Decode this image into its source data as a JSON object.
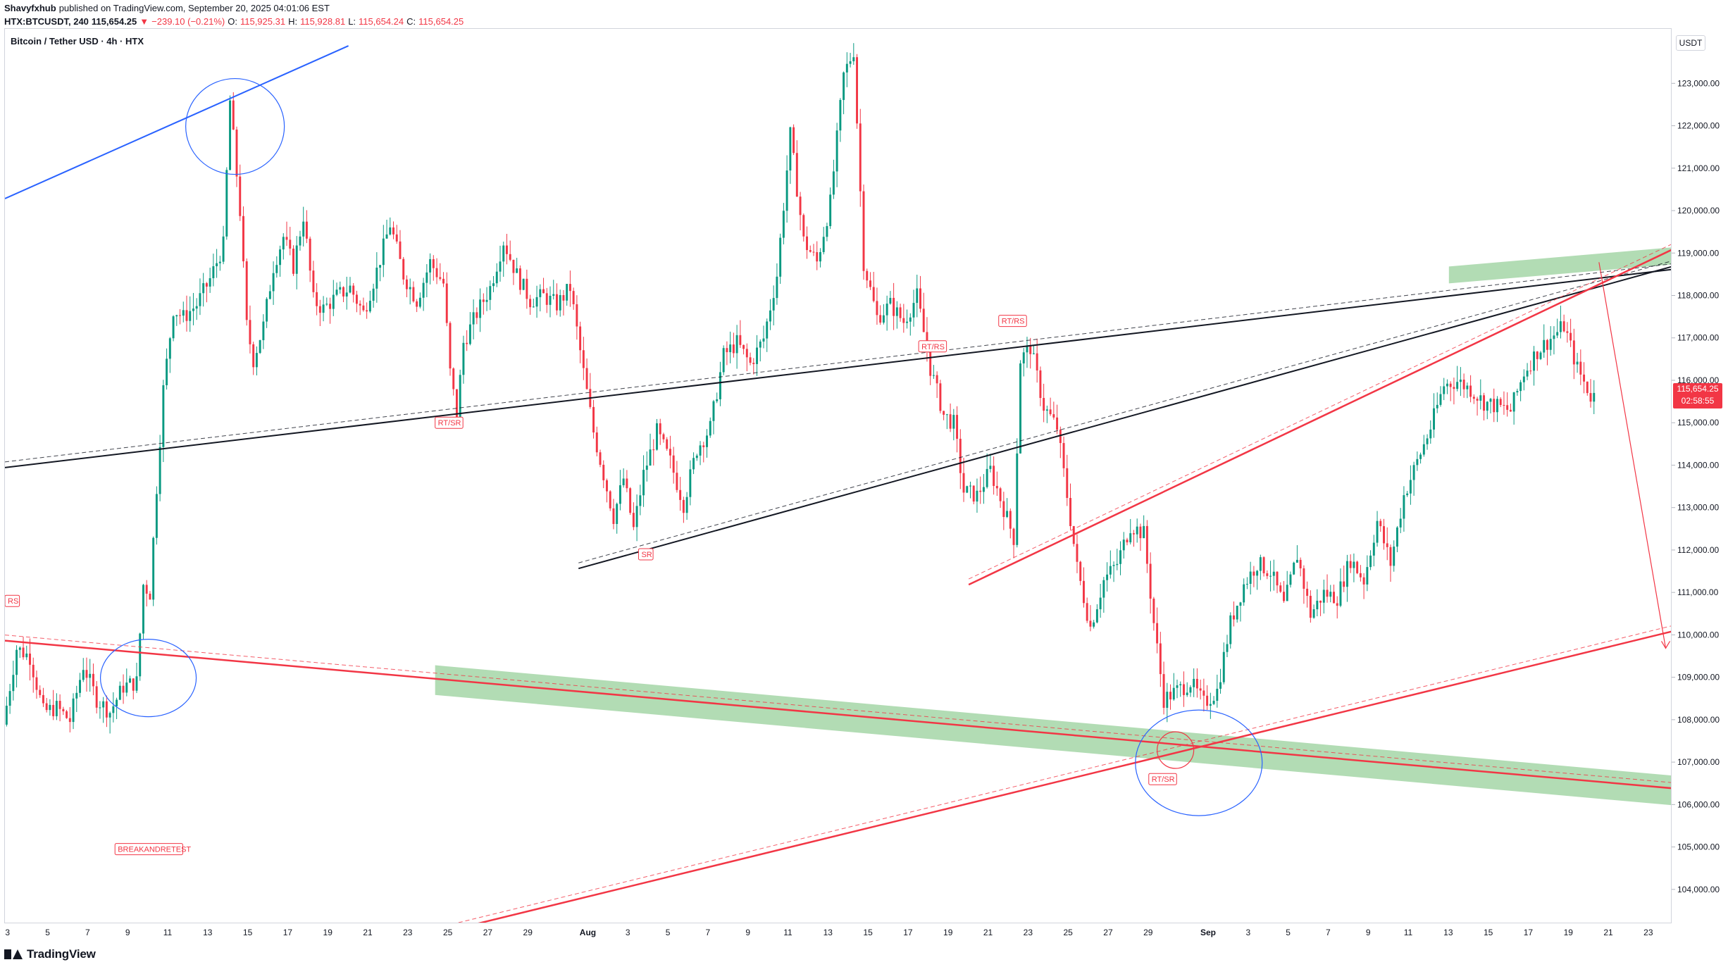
{
  "header": {
    "publisher": "Shavyfxhub",
    "published_text": "published on TradingView.com, September 20, 2025 04:01:06 EST",
    "symbol": "HTX:BTCUSDT, 240",
    "last": "115,654.25",
    "change": "−239.10 (−0.21%)",
    "open_label": "O:",
    "open": "115,925.31",
    "high_label": "H:",
    "high": "115,928.81",
    "low_label": "L:",
    "low": "115,654.24",
    "close_label": "C:",
    "close": "115,654.25"
  },
  "chart_title": "Bitcoin / Tether USD · 4h · HTX",
  "unit": "USDT",
  "price_tag": {
    "price": "115,654.25",
    "countdown": "02:58:55"
  },
  "footer": {
    "brand": "TradingView"
  },
  "colors": {
    "up": "#089981",
    "down": "#f23645",
    "zone": "#a5d6a7",
    "blue": "#2962ff",
    "black": "#131722"
  },
  "chart_data": {
    "type": "candlestick",
    "symbol": "BTCUSDT",
    "ylim": [
      103200,
      124300
    ],
    "y_ticks": [
      104000,
      105000,
      106000,
      107000,
      108000,
      109000,
      110000,
      111000,
      112000,
      113000,
      114000,
      115000,
      116000,
      117000,
      118000,
      119000,
      120000,
      121000,
      122000,
      123000
    ],
    "y_tick_labels": [
      "104,000.00",
      "105,000.00",
      "106,000.00",
      "107,000.00",
      "108,000.00",
      "109,000.00",
      "110,000.00",
      "111,000.00",
      "112,000.00",
      "113,000.00",
      "114,000.00",
      "115,000.00",
      "116,000.00",
      "117,000.00",
      "118,000.00",
      "119,000.00",
      "120,000.00",
      "121,000.00",
      "122,000.00",
      "123,000.00"
    ],
    "xlim": [
      "2025-07-02T20:00",
      "2025-09-24T04:00"
    ],
    "x_ticks": [
      {
        "date": "2025-07-03",
        "label": "3"
      },
      {
        "date": "2025-07-05",
        "label": "5"
      },
      {
        "date": "2025-07-07",
        "label": "7"
      },
      {
        "date": "2025-07-09",
        "label": "9"
      },
      {
        "date": "2025-07-11",
        "label": "11"
      },
      {
        "date": "2025-07-13",
        "label": "13"
      },
      {
        "date": "2025-07-15",
        "label": "15"
      },
      {
        "date": "2025-07-17",
        "label": "17"
      },
      {
        "date": "2025-07-19",
        "label": "19"
      },
      {
        "date": "2025-07-21",
        "label": "21"
      },
      {
        "date": "2025-07-23",
        "label": "23"
      },
      {
        "date": "2025-07-25",
        "label": "25"
      },
      {
        "date": "2025-07-27",
        "label": "27"
      },
      {
        "date": "2025-07-29",
        "label": "29"
      },
      {
        "date": "2025-08-01",
        "label": "Aug"
      },
      {
        "date": "2025-08-03",
        "label": "3"
      },
      {
        "date": "2025-08-05",
        "label": "5"
      },
      {
        "date": "2025-08-07",
        "label": "7"
      },
      {
        "date": "2025-08-09",
        "label": "9"
      },
      {
        "date": "2025-08-11",
        "label": "11"
      },
      {
        "date": "2025-08-13",
        "label": "13"
      },
      {
        "date": "2025-08-15",
        "label": "15"
      },
      {
        "date": "2025-08-17",
        "label": "17"
      },
      {
        "date": "2025-08-19",
        "label": "19"
      },
      {
        "date": "2025-08-21",
        "label": "21"
      },
      {
        "date": "2025-08-23",
        "label": "23"
      },
      {
        "date": "2025-08-25",
        "label": "25"
      },
      {
        "date": "2025-08-27",
        "label": "27"
      },
      {
        "date": "2025-08-29",
        "label": "29"
      },
      {
        "date": "2025-09-01",
        "label": "Sep"
      },
      {
        "date": "2025-09-03",
        "label": "3"
      },
      {
        "date": "2025-09-05",
        "label": "5"
      },
      {
        "date": "2025-09-07",
        "label": "7"
      },
      {
        "date": "2025-09-09",
        "label": "9"
      },
      {
        "date": "2025-09-11",
        "label": "11"
      },
      {
        "date": "2025-09-13",
        "label": "13"
      },
      {
        "date": "2025-09-15",
        "label": "15"
      },
      {
        "date": "2025-09-17",
        "label": "17"
      },
      {
        "date": "2025-09-19",
        "label": "19"
      },
      {
        "date": "2025-09-21",
        "label": "21"
      },
      {
        "date": "2025-09-23",
        "label": "23"
      }
    ],
    "price_path": [
      [
        "2025-07-02T20:00",
        107900
      ],
      [
        "2025-07-03T12:00",
        109700
      ],
      [
        "2025-07-04T04:00",
        109500
      ],
      [
        "2025-07-04T20:00",
        108200
      ],
      [
        "2025-07-05T12:00",
        108300
      ],
      [
        "2025-07-06T04:00",
        108000
      ],
      [
        "2025-07-06T20:00",
        109300
      ],
      [
        "2025-07-07T12:00",
        108500
      ],
      [
        "2025-07-08T04:00",
        108200
      ],
      [
        "2025-07-08T20:00",
        108800
      ],
      [
        "2025-07-09T12:00",
        108900
      ],
      [
        "2025-07-09T20:00",
        111200
      ],
      [
        "2025-07-10T04:00",
        111000
      ],
      [
        "2025-07-10T12:00",
        113500
      ],
      [
        "2025-07-10T20:00",
        115800
      ],
      [
        "2025-07-11T08:00",
        117700
      ],
      [
        "2025-07-11T20:00",
        117500
      ],
      [
        "2025-07-12T12:00",
        117800
      ],
      [
        "2025-07-13T04:00",
        118400
      ],
      [
        "2025-07-13T20:00",
        119200
      ],
      [
        "2025-07-14T04:00",
        122600
      ],
      [
        "2025-07-14T16:00",
        120000
      ],
      [
        "2025-07-15T00:00",
        117300
      ],
      [
        "2025-07-15T08:00",
        116500
      ],
      [
        "2025-07-15T20:00",
        117300
      ],
      [
        "2025-07-16T08:00",
        118700
      ],
      [
        "2025-07-16T20:00",
        119400
      ],
      [
        "2025-07-17T08:00",
        118700
      ],
      [
        "2025-07-17T20:00",
        119900
      ],
      [
        "2025-07-18T08:00",
        117900
      ],
      [
        "2025-07-18T20:00",
        117700
      ],
      [
        "2025-07-19T12:00",
        118000
      ],
      [
        "2025-07-20T04:00",
        118200
      ],
      [
        "2025-07-20T20:00",
        117600
      ],
      [
        "2025-07-21T12:00",
        118600
      ],
      [
        "2025-07-22T04:00",
        119700
      ],
      [
        "2025-07-22T20:00",
        118500
      ],
      [
        "2025-07-23T12:00",
        117900
      ],
      [
        "2025-07-24T04:00",
        118800
      ],
      [
        "2025-07-24T20:00",
        118300
      ],
      [
        "2025-07-25T04:00",
        116200
      ],
      [
        "2025-07-25T12:00",
        115200
      ],
      [
        "2025-07-25T20:00",
        116900
      ],
      [
        "2025-07-26T12:00",
        117600
      ],
      [
        "2025-07-27T04:00",
        118200
      ],
      [
        "2025-07-27T20:00",
        119300
      ],
      [
        "2025-07-28T12:00",
        118500
      ],
      [
        "2025-07-29T04:00",
        117900
      ],
      [
        "2025-07-29T20:00",
        118000
      ],
      [
        "2025-07-30T12:00",
        117800
      ],
      [
        "2025-07-31T04:00",
        118200
      ],
      [
        "2025-07-31T20:00",
        116200
      ],
      [
        "2025-08-01T08:00",
        114800
      ],
      [
        "2025-08-01T20:00",
        113800
      ],
      [
        "2025-08-02T08:00",
        112800
      ],
      [
        "2025-08-02T20:00",
        113700
      ],
      [
        "2025-08-03T08:00",
        112500
      ],
      [
        "2025-08-03T20:00",
        113800
      ],
      [
        "2025-08-04T12:00",
        114800
      ],
      [
        "2025-08-05T04:00",
        114100
      ],
      [
        "2025-08-05T20:00",
        113100
      ],
      [
        "2025-08-06T12:00",
        114400
      ],
      [
        "2025-08-07T04:00",
        114900
      ],
      [
        "2025-08-07T20:00",
        116600
      ],
      [
        "2025-08-08T12:00",
        116900
      ],
      [
        "2025-08-09T04:00",
        116400
      ],
      [
        "2025-08-09T20:00",
        117000
      ],
      [
        "2025-08-10T12:00",
        118500
      ],
      [
        "2025-08-11T04:00",
        121800
      ],
      [
        "2025-08-11T20:00",
        119300
      ],
      [
        "2025-08-12T12:00",
        118800
      ],
      [
        "2025-08-13T04:00",
        120200
      ],
      [
        "2025-08-13T20:00",
        123200
      ],
      [
        "2025-08-14T08:00",
        123800
      ],
      [
        "2025-08-14T20:00",
        118800
      ],
      [
        "2025-08-15T12:00",
        117500
      ],
      [
        "2025-08-16T04:00",
        117800
      ],
      [
        "2025-08-16T20:00",
        117400
      ],
      [
        "2025-08-17T12:00",
        118000
      ],
      [
        "2025-08-18T04:00",
        116300
      ],
      [
        "2025-08-18T20:00",
        115200
      ],
      [
        "2025-08-19T08:00",
        115000
      ],
      [
        "2025-08-19T20:00",
        113400
      ],
      [
        "2025-08-20T12:00",
        113300
      ],
      [
        "2025-08-21T04:00",
        113900
      ],
      [
        "2025-08-21T20:00",
        113000
      ],
      [
        "2025-08-22T08:00",
        112300
      ],
      [
        "2025-08-22T16:00",
        116500
      ],
      [
        "2025-08-23T04:00",
        116800
      ],
      [
        "2025-08-23T20:00",
        115400
      ],
      [
        "2025-08-24T12:00",
        114900
      ],
      [
        "2025-08-25T00:00",
        113300
      ],
      [
        "2025-08-25T12:00",
        111600
      ],
      [
        "2025-08-26T04:00",
        110200
      ],
      [
        "2025-08-26T20:00",
        111300
      ],
      [
        "2025-08-27T12:00",
        111700
      ],
      [
        "2025-08-28T04:00",
        112600
      ],
      [
        "2025-08-28T20:00",
        112400
      ],
      [
        "2025-08-29T08:00",
        110300
      ],
      [
        "2025-08-29T20:00",
        108500
      ],
      [
        "2025-08-30T12:00",
        108700
      ],
      [
        "2025-08-31T04:00",
        108900
      ],
      [
        "2025-08-31T20:00",
        108400
      ],
      [
        "2025-09-01T12:00",
        108700
      ],
      [
        "2025-09-02T04:00",
        110300
      ],
      [
        "2025-09-02T20:00",
        111200
      ],
      [
        "2025-09-03T12:00",
        111700
      ],
      [
        "2025-09-04T04:00",
        111500
      ],
      [
        "2025-09-04T20:00",
        110700
      ],
      [
        "2025-09-05T12:00",
        111900
      ],
      [
        "2025-09-06T04:00",
        110500
      ],
      [
        "2025-09-06T20:00",
        111000
      ],
      [
        "2025-09-07T12:00",
        110900
      ],
      [
        "2025-09-08T04:00",
        111800
      ],
      [
        "2025-09-08T20:00",
        111300
      ],
      [
        "2025-09-09T12:00",
        112700
      ],
      [
        "2025-09-10T04:00",
        111700
      ],
      [
        "2025-09-10T20:00",
        113300
      ],
      [
        "2025-09-11T12:00",
        114100
      ],
      [
        "2025-09-12T04:00",
        114900
      ],
      [
        "2025-09-12T20:00",
        115900
      ],
      [
        "2025-09-13T12:00",
        116000
      ],
      [
        "2025-09-14T04:00",
        115800
      ],
      [
        "2025-09-14T20:00",
        115500
      ],
      [
        "2025-09-15T12:00",
        115400
      ],
      [
        "2025-09-16T04:00",
        115300
      ],
      [
        "2025-09-16T20:00",
        116200
      ],
      [
        "2025-09-17T12:00",
        116700
      ],
      [
        "2025-09-18T04:00",
        117000
      ],
      [
        "2025-09-18T20:00",
        117300
      ],
      [
        "2025-09-19T12:00",
        116300
      ],
      [
        "2025-09-20T04:00",
        115650
      ]
    ],
    "markers": [
      {
        "label": "RS",
        "date": "2025-07-02T20:00",
        "price": 110800
      },
      {
        "label": "BREAKANDRETEST",
        "date": "2025-07-08T08:00",
        "price": 104950
      },
      {
        "label": "RT/SR",
        "date": "2025-07-24T08:00",
        "price": 115000
      },
      {
        "label": "SR",
        "date": "2025-08-03T12:00",
        "price": 111900
      },
      {
        "label": "RT/RS",
        "date": "2025-08-17T12:00",
        "price": 116800
      },
      {
        "label": "RT/RS",
        "date": "2025-08-21T12:00",
        "price": 117400
      },
      {
        "label": "RT/SR",
        "date": "2025-08-29T00:00",
        "price": 106600
      }
    ],
    "drawings": [
      {
        "kind": "trendline",
        "color": "blue",
        "from": [
          "2025-07-02T20:00",
          120300
        ],
        "to": [
          "2025-07-20T00:00",
          123900
        ]
      },
      {
        "kind": "trendline",
        "color": "black",
        "from": [
          "2025-07-02T20:00",
          113960
        ],
        "to": [
          "2025-09-24T04:00",
          118630
        ]
      },
      {
        "kind": "trendline",
        "color": "black",
        "from": [
          "2025-07-31T12:00",
          111580
        ],
        "to": [
          "2025-09-24T04:00",
          118700
        ]
      },
      {
        "kind": "trendline",
        "color": "red",
        "from": [
          "2025-07-02T20:00",
          109880
        ],
        "to": [
          "2025-09-24T04:00",
          106400
        ]
      },
      {
        "kind": "trendline",
        "color": "red",
        "from": [
          "2025-07-25T12:00",
          103100
        ],
        "to": [
          "2025-09-24T04:00",
          110100
        ]
      },
      {
        "kind": "trendline",
        "color": "red",
        "from": [
          "2025-08-20T00:00",
          111200
        ],
        "to": [
          "2025-09-24T04:00",
          119100
        ]
      },
      {
        "kind": "zone",
        "color": "green",
        "from": [
          "2025-07-24T08:00",
          108950
        ],
        "to": [
          "2025-09-24T04:00",
          106350
        ],
        "height": 700
      },
      {
        "kind": "zone",
        "color": "green",
        "from": [
          "2025-09-13T00:00",
          118500
        ],
        "to": [
          "2025-09-24T04:00",
          118950
        ],
        "height": 400
      },
      {
        "kind": "projection",
        "color": "red",
        "from": [
          "2025-09-20T12:00",
          118800
        ],
        "to": [
          "2025-09-23T20:00",
          109700
        ]
      }
    ]
  }
}
